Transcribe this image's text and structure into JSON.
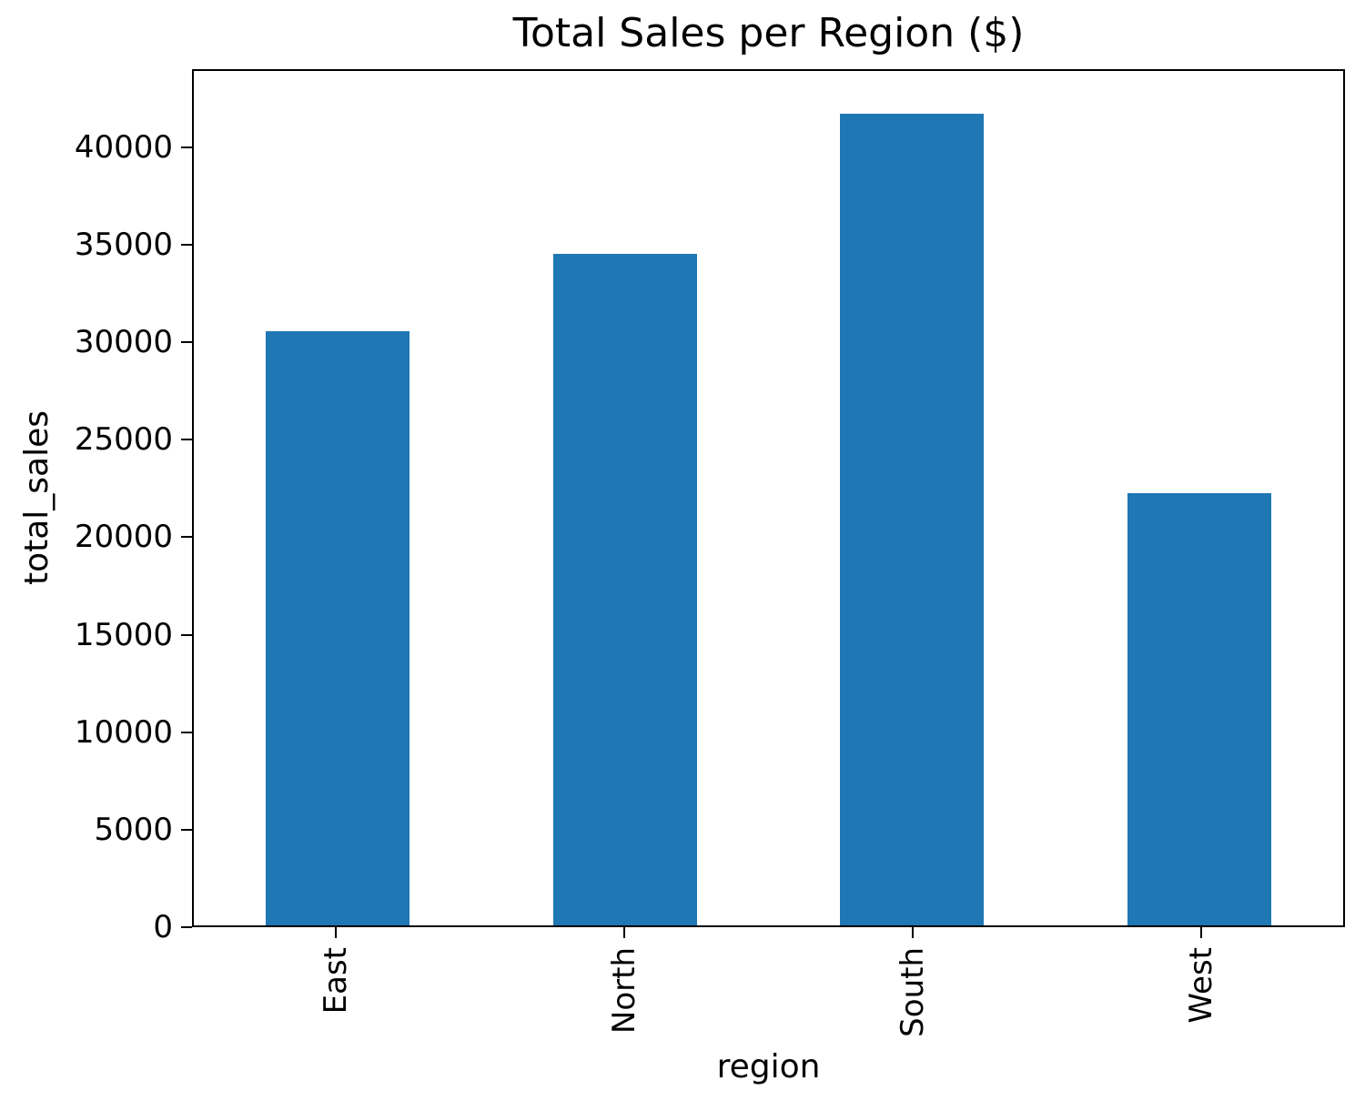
{
  "chart_data": {
    "type": "bar",
    "title": "Total Sales per Region ($)",
    "xlabel": "region",
    "ylabel": "total_sales",
    "categories": [
      "East",
      "North",
      "South",
      "West"
    ],
    "values": [
      30600,
      34600,
      41800,
      22250
    ],
    "ylim": [
      0,
      44000
    ],
    "yticks": [
      0,
      5000,
      10000,
      15000,
      20000,
      25000,
      30000,
      35000,
      40000
    ],
    "ytick_labels": [
      "0",
      "5000",
      "10000",
      "15000",
      "20000",
      "25000",
      "30000",
      "35000",
      "40000"
    ],
    "xtick_rotation": 90,
    "bar_color": "#1f77b4",
    "spine_color": "#000000",
    "text_color": "#000000",
    "grid": false,
    "legend": null
  }
}
